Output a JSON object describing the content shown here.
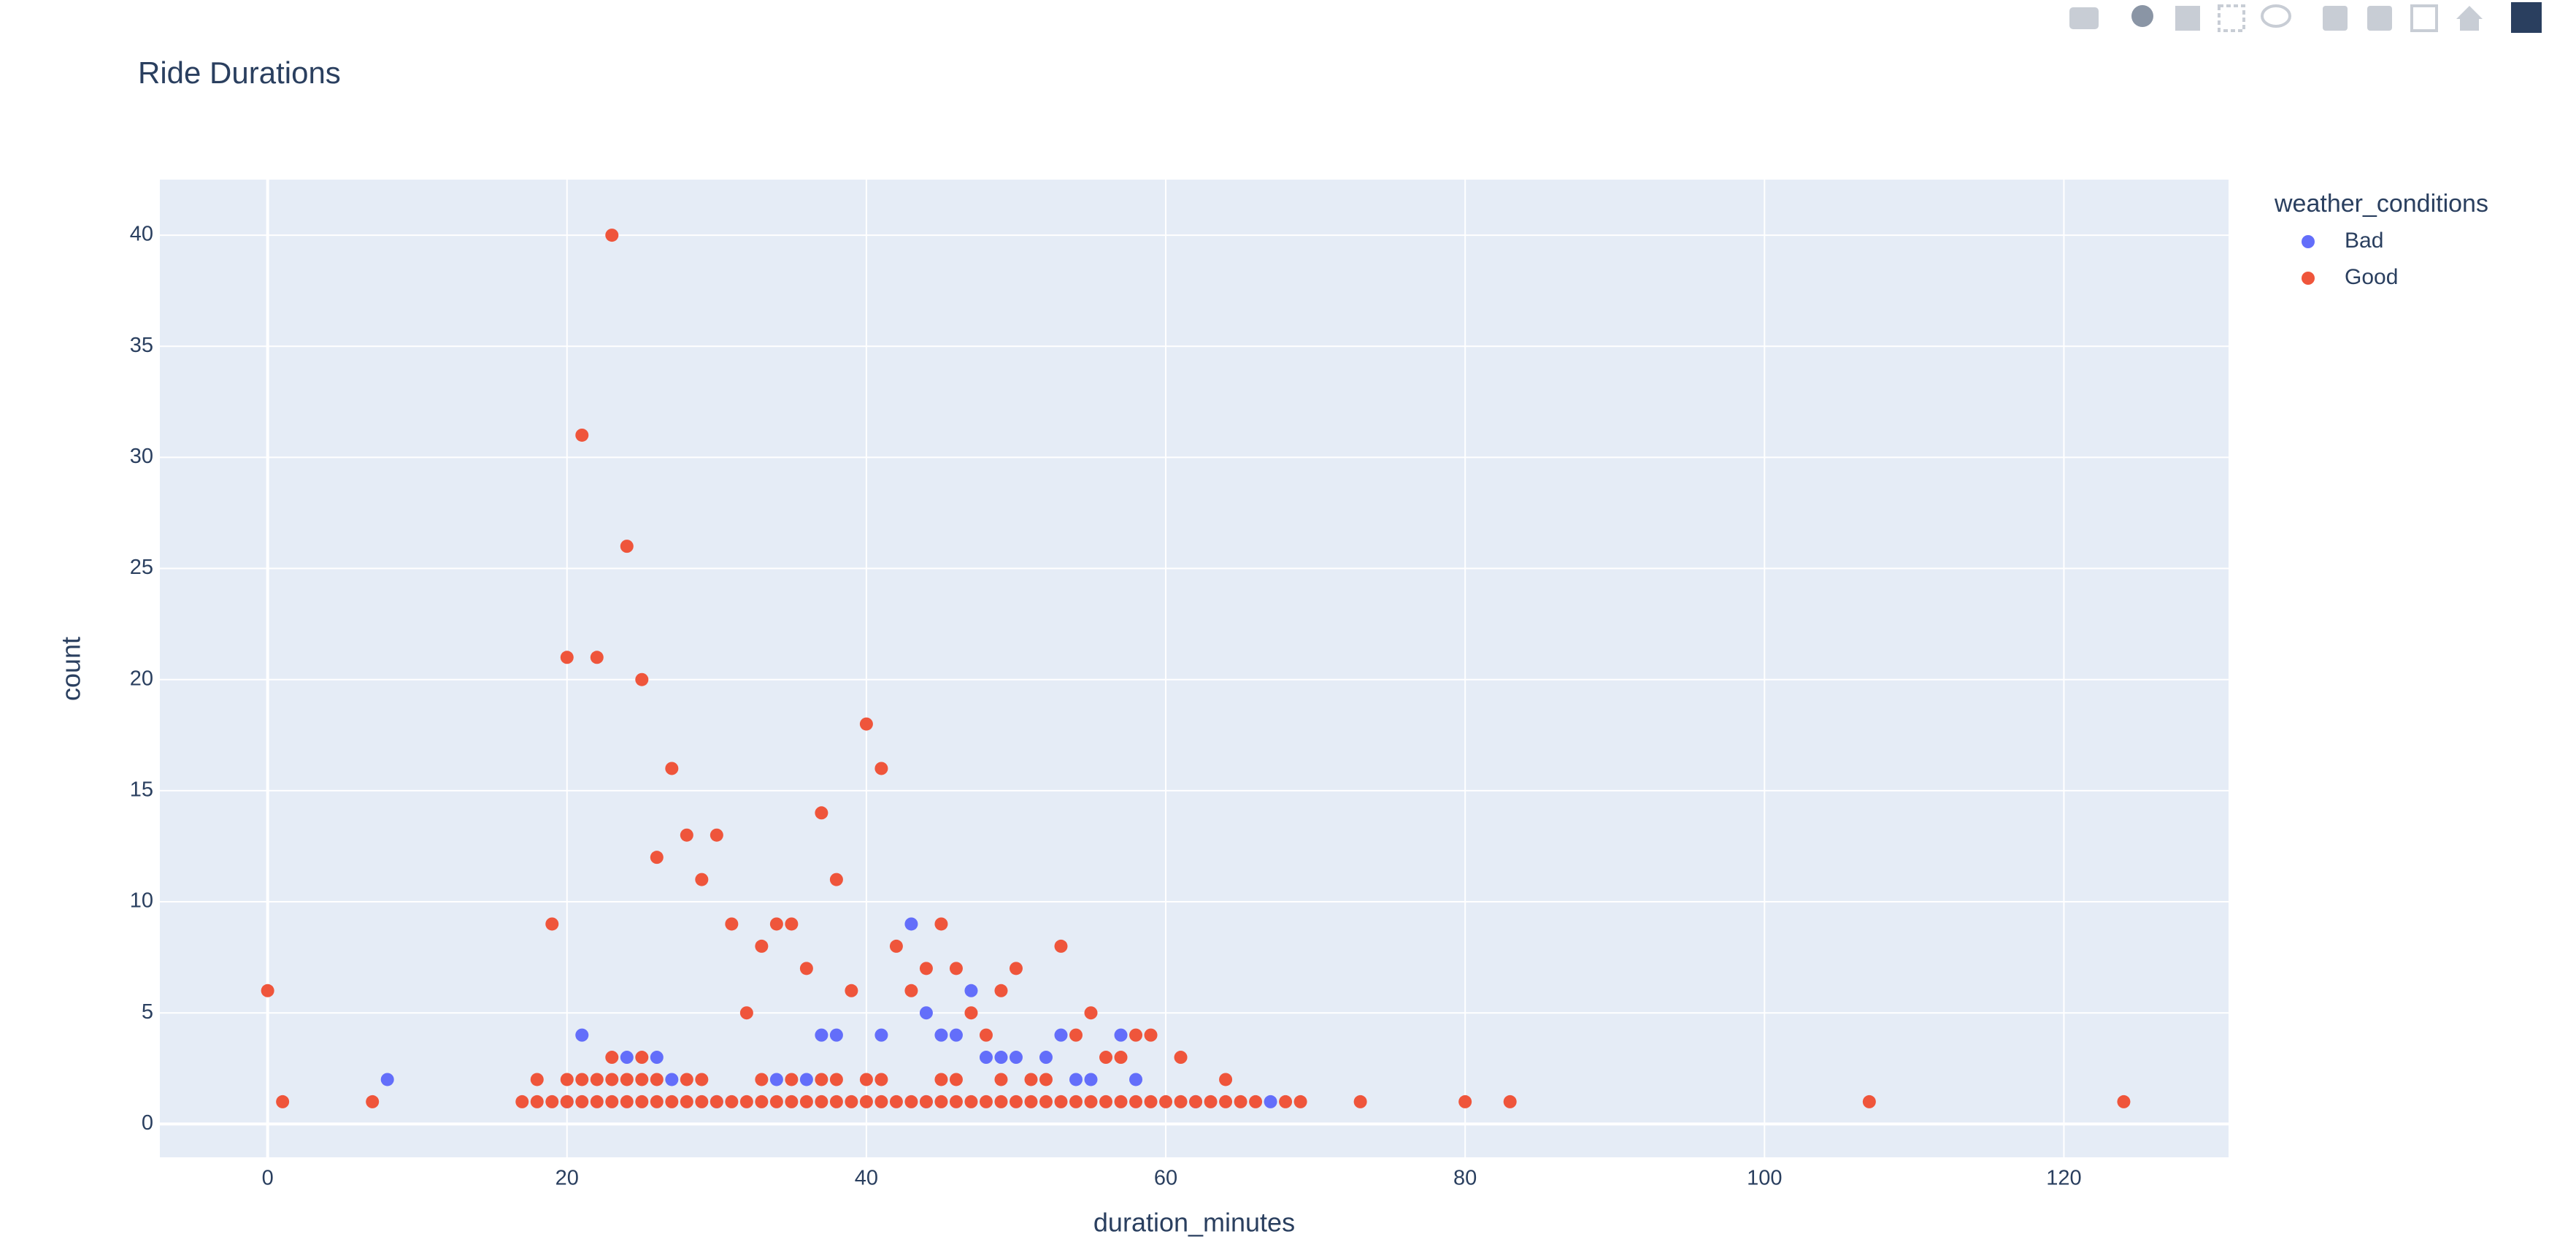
{
  "chart_data": {
    "type": "scatter",
    "title": "Ride Durations",
    "xlabel": "duration_minutes",
    "ylabel": "count",
    "legend_title": "weather_conditions",
    "legend": "right",
    "grid": true,
    "xlim": [
      -7.2,
      131
    ],
    "xticks": [
      0,
      20,
      40,
      60,
      80,
      100,
      120
    ],
    "ylim": [
      -1.5,
      42.5
    ],
    "yticks": [
      0,
      5,
      10,
      15,
      20,
      25,
      30,
      35,
      40
    ],
    "series": [
      {
        "name": "Bad",
        "color": "#636efa",
        "x": [
          8,
          20,
          21,
          24,
          26,
          27,
          30,
          34,
          36,
          37,
          38,
          41,
          43,
          44,
          44,
          45,
          46,
          47,
          48,
          49,
          50,
          52,
          53,
          54,
          55,
          57,
          58,
          62,
          67
        ],
        "values": [
          2,
          1,
          4,
          3,
          3,
          2,
          1,
          2,
          2,
          4,
          4,
          4,
          9,
          5,
          1,
          4,
          4,
          6,
          3,
          3,
          3,
          3,
          4,
          2,
          2,
          4,
          2,
          1,
          1
        ]
      },
      {
        "name": "Good",
        "color": "#EF553B",
        "x": [
          0,
          1,
          7,
          17,
          18,
          18,
          19,
          19,
          20,
          20,
          20,
          21,
          21,
          21,
          22,
          22,
          22,
          23,
          23,
          23,
          23,
          24,
          24,
          24,
          25,
          25,
          25,
          25,
          26,
          26,
          26,
          27,
          27,
          28,
          28,
          28,
          29,
          29,
          29,
          30,
          30,
          31,
          31,
          32,
          32,
          33,
          33,
          33,
          34,
          34,
          35,
          35,
          35,
          36,
          36,
          37,
          37,
          37,
          38,
          38,
          38,
          39,
          39,
          40,
          40,
          40,
          41,
          41,
          41,
          42,
          42,
          43,
          43,
          44,
          44,
          45,
          45,
          45,
          46,
          46,
          46,
          47,
          47,
          48,
          48,
          49,
          49,
          49,
          50,
          50,
          51,
          51,
          52,
          52,
          53,
          53,
          54,
          54,
          55,
          55,
          56,
          56,
          57,
          57,
          58,
          58,
          59,
          59,
          60,
          61,
          61,
          62,
          63,
          64,
          64,
          65,
          66,
          68,
          69,
          73,
          80,
          83,
          107,
          124
        ],
        "values": [
          6,
          1,
          1,
          1,
          1,
          2,
          1,
          9,
          1,
          2,
          21,
          1,
          2,
          31,
          1,
          2,
          21,
          1,
          2,
          3,
          40,
          1,
          2,
          26,
          1,
          2,
          3,
          20,
          1,
          2,
          12,
          1,
          16,
          1,
          2,
          13,
          1,
          2,
          11,
          1,
          13,
          1,
          9,
          1,
          5,
          1,
          2,
          8,
          1,
          9,
          1,
          2,
          9,
          1,
          7,
          1,
          2,
          14,
          1,
          2,
          11,
          1,
          6,
          1,
          2,
          18,
          1,
          2,
          16,
          1,
          8,
          1,
          6,
          1,
          7,
          1,
          2,
          9,
          1,
          2,
          7,
          1,
          5,
          1,
          4,
          1,
          2,
          6,
          1,
          7,
          1,
          2,
          1,
          2,
          1,
          8,
          1,
          4,
          1,
          5,
          1,
          3,
          1,
          3,
          1,
          4,
          1,
          4,
          1,
          1,
          3,
          1,
          1,
          1,
          2,
          1,
          1,
          1,
          1,
          1,
          1,
          1,
          1,
          1
        ]
      }
    ]
  }
}
